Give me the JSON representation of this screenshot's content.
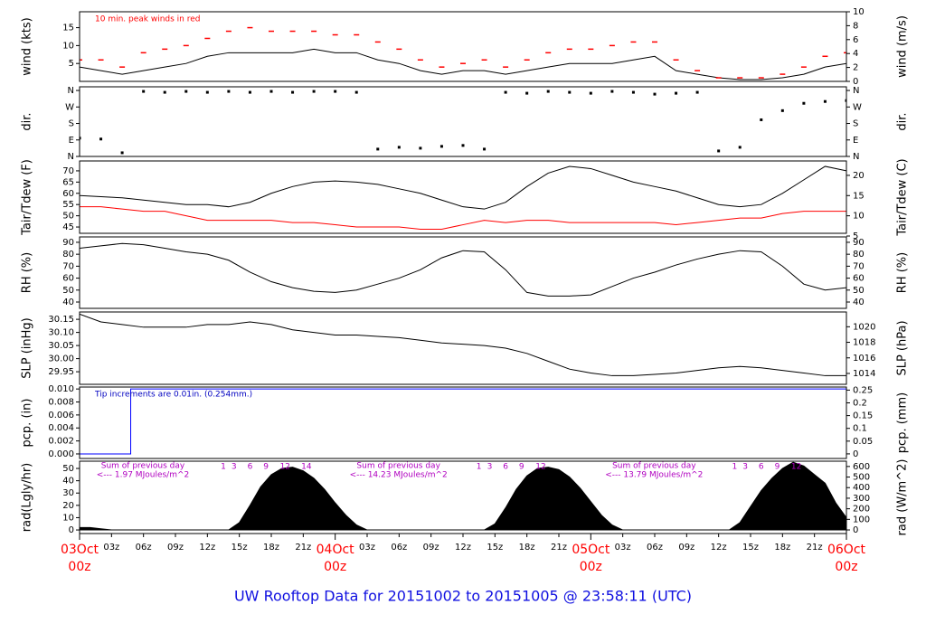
{
  "title": "UW Rooftop Data for 20151002  to  20151005 @ 23:58:11  (UTC)",
  "chart_data": [
    {
      "type": "line",
      "ylabel": "wind (kts)",
      "y2label": "wind (m/s)",
      "annotation": "10 min. peak winds in red",
      "xlim": [
        0,
        72
      ],
      "ylim": [
        0,
        19.44
      ],
      "yticks": [
        5,
        10,
        15
      ],
      "y2lim": [
        0,
        10
      ],
      "y2ticks": [
        0,
        2,
        4,
        6,
        8,
        10
      ],
      "series": [
        {
          "name": "wind",
          "color": "#000000",
          "marker": "line",
          "x": [
            0,
            2,
            4,
            6,
            8,
            10,
            12,
            14,
            16,
            18,
            20,
            22,
            24,
            26,
            28,
            30,
            32,
            34,
            36,
            38,
            40,
            42,
            44,
            46,
            48,
            50,
            52,
            54,
            56,
            58,
            60,
            62,
            64,
            66,
            68,
            70,
            72
          ],
          "values": [
            4,
            3,
            2,
            3,
            4,
            5,
            7,
            8,
            8,
            8,
            8,
            9,
            8,
            8,
            6,
            5,
            3,
            2,
            3,
            3,
            2,
            3,
            4,
            5,
            5,
            5,
            6,
            7,
            3,
            2,
            1,
            0.5,
            0.5,
            1,
            2,
            4,
            5
          ]
        },
        {
          "name": "10 min. peak",
          "color": "#ff0000",
          "marker": "dash",
          "x": [
            0,
            2,
            4,
            6,
            8,
            10,
            12,
            14,
            16,
            18,
            20,
            22,
            24,
            26,
            28,
            30,
            32,
            34,
            36,
            38,
            40,
            42,
            44,
            46,
            48,
            50,
            52,
            54,
            56,
            58,
            60,
            62,
            64,
            66,
            68,
            70,
            72
          ],
          "values": [
            6,
            6,
            4,
            8,
            9,
            10,
            12,
            14,
            15,
            14,
            14,
            14,
            13,
            13,
            11,
            9,
            6,
            4,
            5,
            6,
            4,
            6,
            8,
            9,
            9,
            10,
            11,
            11,
            6,
            3,
            1,
            1,
            1,
            2,
            4,
            7,
            8
          ]
        }
      ]
    },
    {
      "type": "scatter",
      "ylabel": "dir.",
      "y2label": "dir.",
      "xlim": [
        0,
        72
      ],
      "ylim": [
        0,
        380
      ],
      "yticks": [
        {
          "value": 0,
          "label": "N"
        },
        {
          "value": 90,
          "label": "E"
        },
        {
          "value": 180,
          "label": "S"
        },
        {
          "value": 270,
          "label": "W"
        },
        {
          "value": 360,
          "label": "N"
        }
      ],
      "y2lim": [
        0,
        380
      ],
      "y2ticks": [
        {
          "value": 0,
          "label": "N"
        },
        {
          "value": 90,
          "label": "E"
        },
        {
          "value": 180,
          "label": "S"
        },
        {
          "value": 270,
          "label": "W"
        },
        {
          "value": 360,
          "label": "N"
        }
      ],
      "series": [
        {
          "name": "direction",
          "color": "#000000",
          "x": [
            0,
            2,
            4,
            6,
            8,
            10,
            12,
            14,
            16,
            18,
            20,
            22,
            24,
            26,
            28,
            30,
            32,
            34,
            36,
            38,
            40,
            42,
            44,
            46,
            48,
            50,
            52,
            54,
            56,
            58,
            60,
            62,
            64,
            66,
            68,
            70,
            72
          ],
          "values": [
            100,
            95,
            20,
            355,
            350,
            355,
            350,
            355,
            350,
            355,
            350,
            355,
            355,
            350,
            40,
            50,
            45,
            55,
            60,
            40,
            350,
            345,
            355,
            350,
            345,
            355,
            350,
            340,
            345,
            350,
            30,
            50,
            200,
            250,
            290,
            300,
            305
          ]
        }
      ]
    },
    {
      "type": "line",
      "ylabel": "Tair/Tdew (F)",
      "y2label": "Tair/Tdew (C)",
      "xlim": [
        0,
        72
      ],
      "ylim": [
        42.2,
        74.4
      ],
      "yticks": [
        45,
        50,
        55,
        60,
        65,
        70
      ],
      "y2lim": [
        5.67,
        23.56
      ],
      "y2ticks": [
        5,
        10,
        15,
        20
      ],
      "series": [
        {
          "name": "Tair",
          "color": "#000000",
          "marker": "line",
          "x": [
            0,
            2,
            4,
            6,
            8,
            10,
            12,
            14,
            16,
            18,
            20,
            22,
            24,
            26,
            28,
            30,
            32,
            34,
            36,
            38,
            40,
            42,
            44,
            46,
            48,
            50,
            52,
            54,
            56,
            58,
            60,
            62,
            64,
            66,
            68,
            70,
            72
          ],
          "values": [
            59,
            58.5,
            58,
            57,
            56,
            55,
            55,
            54,
            56,
            60,
            63,
            65,
            65.5,
            65,
            64,
            62,
            60,
            57,
            54,
            53,
            56,
            63,
            69,
            72,
            71,
            68,
            65,
            63,
            61,
            58,
            55,
            54,
            55,
            60,
            66,
            72,
            70
          ]
        },
        {
          "name": "Tdew",
          "color": "#ff0000",
          "marker": "line",
          "x": [
            0,
            2,
            4,
            6,
            8,
            10,
            12,
            14,
            16,
            18,
            20,
            22,
            24,
            26,
            28,
            30,
            32,
            34,
            36,
            38,
            40,
            42,
            44,
            46,
            48,
            50,
            52,
            54,
            56,
            58,
            60,
            62,
            64,
            66,
            68,
            70,
            72
          ],
          "values": [
            54,
            54,
            53,
            52,
            52,
            50,
            48,
            48,
            48,
            48,
            47,
            47,
            46,
            45,
            45,
            45,
            44,
            44,
            46,
            48,
            47,
            48,
            48,
            47,
            47,
            47,
            47,
            47,
            46,
            47,
            48,
            49,
            49,
            51,
            52,
            52,
            52
          ]
        }
      ]
    },
    {
      "type": "line",
      "ylabel": "RH (%)",
      "y2label": "RH (%)",
      "xlim": [
        0,
        72
      ],
      "ylim": [
        34.7,
        94.5
      ],
      "yticks": [
        40,
        50,
        60,
        70,
        80,
        90
      ],
      "y2lim": [
        34.7,
        94.5
      ],
      "y2ticks": [
        40,
        50,
        60,
        70,
        80,
        90
      ],
      "series": [
        {
          "name": "RH",
          "color": "#000000",
          "marker": "line",
          "x": [
            0,
            2,
            4,
            6,
            8,
            10,
            12,
            14,
            16,
            18,
            20,
            22,
            24,
            26,
            28,
            30,
            32,
            34,
            36,
            38,
            40,
            42,
            44,
            46,
            48,
            50,
            52,
            54,
            56,
            58,
            60,
            62,
            64,
            66,
            68,
            70,
            72
          ],
          "values": [
            85,
            87,
            89,
            88,
            85,
            82,
            80,
            75,
            65,
            57,
            52,
            49,
            48,
            50,
            55,
            60,
            67,
            77,
            83,
            82,
            67,
            48,
            45,
            45,
            46,
            53,
            60,
            65,
            71,
            76,
            80,
            83,
            82,
            70,
            55,
            50,
            52
          ]
        }
      ]
    },
    {
      "type": "line",
      "ylabel": "SLP (inHg)",
      "y2label": "SLP (hPa)",
      "xlim": [
        0,
        72
      ],
      "ylim": [
        29.902,
        30.178
      ],
      "yticks": [
        29.95,
        {
          "value": 30.0,
          "label": "30.00"
        },
        30.05,
        {
          "value": 30.1,
          "label": "30.10"
        },
        30.15
      ],
      "y2lim": [
        1012.6,
        1021.9
      ],
      "y2ticks": [
        1014,
        1016,
        1018,
        1020
      ],
      "series": [
        {
          "name": "SLP",
          "color": "#000000",
          "marker": "line",
          "x": [
            0,
            2,
            4,
            6,
            8,
            10,
            12,
            14,
            16,
            18,
            20,
            22,
            24,
            26,
            28,
            30,
            32,
            34,
            36,
            38,
            40,
            42,
            44,
            46,
            48,
            50,
            52,
            54,
            56,
            58,
            60,
            62,
            64,
            66,
            68,
            70,
            72
          ],
          "values": [
            30.17,
            30.14,
            30.13,
            30.12,
            30.12,
            30.12,
            30.13,
            30.13,
            30.14,
            30.13,
            30.11,
            30.1,
            30.09,
            30.09,
            30.085,
            30.08,
            30.07,
            30.06,
            30.055,
            30.05,
            30.04,
            30.02,
            29.99,
            29.96,
            29.945,
            29.935,
            29.935,
            29.94,
            29.945,
            29.955,
            29.965,
            29.97,
            29.965,
            29.955,
            29.945,
            29.935,
            29.935
          ]
        }
      ]
    },
    {
      "type": "step",
      "ylabel": "pcp. (in)",
      "y2label": "pcp. (mm)",
      "annotation": "Tip increments are 0.01in. (0.254mm.)",
      "xlim": [
        0,
        72
      ],
      "ylim": [
        -0.0007,
        0.0103
      ],
      "yticks": [
        {
          "value": 0,
          "label": "0.000"
        },
        {
          "value": 0.002,
          "label": "0.002"
        },
        {
          "value": 0.004,
          "label": "0.004"
        },
        {
          "value": 0.006,
          "label": "0.006"
        },
        {
          "value": 0.008,
          "label": "0.008"
        },
        {
          "value": 0.01,
          "label": "0.010"
        }
      ],
      "y2lim": [
        -0.018,
        0.262
      ],
      "y2ticks": [
        0,
        0.05,
        0.1,
        0.15,
        0.2,
        0.25
      ],
      "series": [
        {
          "name": "precipitation",
          "color": "#0000ff",
          "x": [
            0,
            4.8,
            72
          ],
          "values": [
            0,
            0.01,
            0.01
          ]
        }
      ]
    },
    {
      "type": "area",
      "ylabel": "rad(Lgly/hr)",
      "y2label": "rad (W/m^2)",
      "xlim": [
        0,
        72
      ],
      "ylim": [
        -2.9,
        55.9
      ],
      "yticks": [
        0,
        10,
        20,
        30,
        40,
        50
      ],
      "y2lim": [
        -34,
        650
      ],
      "y2ticks": [
        0,
        100,
        200,
        300,
        400,
        500,
        600
      ],
      "days": [
        {
          "title": "Sum of previous day",
          "total": "<--- 1.97 MJoules/m^2",
          "hours": [
            "1",
            "3",
            "6",
            "9",
            "12",
            "14"
          ]
        },
        {
          "title": "Sum of previous day",
          "total": "<--- 14.23 MJoules/m^2",
          "hours": [
            "1",
            "3",
            "6",
            "9",
            "12"
          ]
        },
        {
          "title": "Sum of previous day",
          "total": "<--- 13.79 MJoules/m^2",
          "hours": [
            "1",
            "3",
            "6",
            "9",
            "12"
          ]
        }
      ],
      "xticks": [
        {
          "value": 3,
          "label": "03z"
        },
        {
          "value": 6,
          "label": "06z"
        },
        {
          "value": 9,
          "label": "09z"
        },
        {
          "value": 12,
          "label": "12z"
        },
        {
          "value": 15,
          "label": "15z"
        },
        {
          "value": 18,
          "label": "18z"
        },
        {
          "value": 21,
          "label": "21z"
        },
        {
          "value": 27,
          "label": "03z"
        },
        {
          "value": 30,
          "label": "06z"
        },
        {
          "value": 33,
          "label": "09z"
        },
        {
          "value": 36,
          "label": "12z"
        },
        {
          "value": 39,
          "label": "15z"
        },
        {
          "value": 42,
          "label": "18z"
        },
        {
          "value": 45,
          "label": "21z"
        },
        {
          "value": 51,
          "label": "03z"
        },
        {
          "value": 54,
          "label": "06z"
        },
        {
          "value": 57,
          "label": "09z"
        },
        {
          "value": 60,
          "label": "12z"
        },
        {
          "value": 63,
          "label": "15z"
        },
        {
          "value": 66,
          "label": "18z"
        },
        {
          "value": 69,
          "label": "21z"
        }
      ],
      "major_ticks": [
        {
          "value": 0,
          "date": "03Oct",
          "time": "00z"
        },
        {
          "value": 24,
          "date": "04Oct",
          "time": "00z"
        },
        {
          "value": 48,
          "date": "05Oct",
          "time": "00z"
        },
        {
          "value": 72,
          "date": "06Oct",
          "time": "00z"
        }
      ],
      "series": [
        {
          "name": "radiation",
          "color": "#000000",
          "x": [
            0,
            1,
            2,
            3,
            4,
            5,
            6,
            7,
            8,
            9,
            10,
            11,
            12,
            13,
            14,
            15,
            16,
            17,
            18,
            19,
            20,
            21,
            22,
            23,
            24,
            25,
            26,
            27,
            28,
            29,
            30,
            31,
            32,
            33,
            34,
            35,
            36,
            37,
            38,
            39,
            40,
            41,
            42,
            43,
            44,
            45,
            46,
            47,
            48,
            49,
            50,
            51,
            52,
            53,
            54,
            55,
            56,
            57,
            58,
            59,
            60,
            61,
            62,
            63,
            64,
            65,
            66,
            67,
            68,
            69,
            70,
            71,
            72
          ],
          "values": [
            2,
            2,
            1,
            0,
            0,
            0,
            0,
            0,
            0,
            0,
            0,
            0,
            0,
            0,
            0,
            6,
            20,
            35,
            45,
            50,
            51,
            48,
            42,
            33,
            22,
            12,
            4,
            0,
            0,
            0,
            0,
            0,
            0,
            0,
            0,
            0,
            0,
            0,
            0,
            5,
            18,
            33,
            44,
            50,
            51,
            49,
            43,
            34,
            23,
            12,
            4,
            0,
            0,
            0,
            0,
            0,
            0,
            0,
            0,
            0,
            0,
            0,
            6,
            19,
            32,
            42,
            50,
            55,
            52,
            45,
            38,
            22,
            10
          ]
        }
      ]
    }
  ]
}
